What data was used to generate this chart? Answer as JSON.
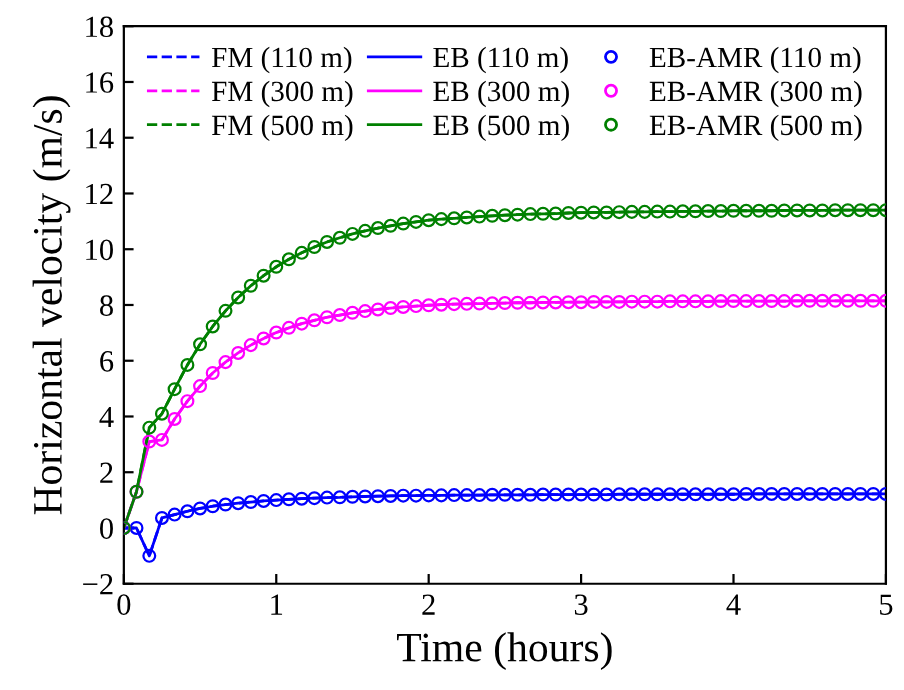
{
  "chart_data": {
    "type": "line",
    "xlabel": "Time (hours)",
    "ylabel": "Horizontal velocity (m/s)",
    "x": [
      0,
      0.083,
      0.167,
      0.25,
      0.333,
      0.417,
      0.5,
      0.583,
      0.667,
      0.75,
      0.833,
      0.917,
      1,
      1.083,
      1.167,
      1.25,
      1.333,
      1.417,
      1.5,
      1.583,
      1.667,
      1.75,
      1.833,
      1.917,
      2,
      2.083,
      2.167,
      2.25,
      2.333,
      2.417,
      2.5,
      2.583,
      2.667,
      2.75,
      2.833,
      2.917,
      3,
      3.083,
      3.167,
      3.25,
      3.333,
      3.417,
      3.5,
      3.583,
      3.667,
      3.75,
      3.833,
      3.917,
      4,
      4.083,
      4.167,
      4.25,
      4.333,
      4.417,
      4.5,
      4.583,
      4.667,
      4.75,
      4.833,
      4.917,
      5
    ],
    "xlim": [
      0,
      5
    ],
    "xticks": [
      0,
      1,
      2,
      3,
      4,
      5
    ],
    "ylim": [
      -2,
      18
    ],
    "yticks": [
      {
        "value": -2,
        "label": "−2"
      },
      0,
      2,
      4,
      6,
      8,
      10,
      12,
      14,
      16,
      18
    ],
    "grid": false,
    "legend": "top",
    "series": [
      {
        "name": "FM (110 m)",
        "line_style": "dashed",
        "marker": "none",
        "color": "#0000ff",
        "values": [
          0,
          0,
          -1.0,
          0.36,
          0.48,
          0.6,
          0.7,
          0.78,
          0.84,
          0.89,
          0.93,
          0.97,
          1.0,
          1.03,
          1.05,
          1.07,
          1.09,
          1.1,
          1.12,
          1.13,
          1.14,
          1.15,
          1.16,
          1.16,
          1.17,
          1.17,
          1.18,
          1.18,
          1.18,
          1.19,
          1.19,
          1.19,
          1.19,
          1.2,
          1.2,
          1.2,
          1.2,
          1.2,
          1.2,
          1.21,
          1.21,
          1.21,
          1.21,
          1.21,
          1.21,
          1.21,
          1.21,
          1.21,
          1.21,
          1.22,
          1.22,
          1.22,
          1.22,
          1.22,
          1.22,
          1.22,
          1.22,
          1.22,
          1.22,
          1.22,
          1.22
        ]
      },
      {
        "name": "FM (300 m)",
        "line_style": "dashed",
        "marker": "none",
        "color": "#ff00ff",
        "values": [
          0,
          1.3,
          3.1,
          3.16,
          3.91,
          4.55,
          5.09,
          5.56,
          5.95,
          6.28,
          6.56,
          6.8,
          7.01,
          7.18,
          7.33,
          7.45,
          7.56,
          7.64,
          7.72,
          7.78,
          7.84,
          7.89,
          7.93,
          7.96,
          7.99,
          8.01,
          8.03,
          8.04,
          8.05,
          8.06,
          8.07,
          8.08,
          8.08,
          8.09,
          8.09,
          8.1,
          8.1,
          8.11,
          8.11,
          8.11,
          8.12,
          8.12,
          8.12,
          8.13,
          8.13,
          8.13,
          8.13,
          8.14,
          8.14,
          8.14,
          8.14,
          8.14,
          8.14,
          8.15,
          8.15,
          8.15,
          8.15,
          8.15,
          8.15,
          8.15,
          8.15
        ]
      },
      {
        "name": "FM (500 m)",
        "line_style": "dashed",
        "marker": "none",
        "color": "#008000",
        "values": [
          0,
          1.3,
          3.6,
          4.1,
          4.98,
          5.85,
          6.59,
          7.23,
          7.79,
          8.27,
          8.69,
          9.05,
          9.37,
          9.64,
          9.87,
          10.08,
          10.26,
          10.41,
          10.55,
          10.66,
          10.76,
          10.84,
          10.92,
          10.98,
          11.04,
          11.08,
          11.11,
          11.14,
          11.17,
          11.2,
          11.22,
          11.24,
          11.26,
          11.27,
          11.28,
          11.3,
          11.31,
          11.32,
          11.32,
          11.33,
          11.34,
          11.34,
          11.35,
          11.35,
          11.36,
          11.36,
          11.37,
          11.37,
          11.38,
          11.38,
          11.38,
          11.38,
          11.39,
          11.39,
          11.39,
          11.39,
          11.4,
          11.4,
          11.4,
          11.4,
          11.4
        ]
      },
      {
        "name": "EB (110 m)",
        "line_style": "solid",
        "marker": "none",
        "color": "#0000ff",
        "values": [
          0,
          0,
          -1.0,
          0.36,
          0.48,
          0.6,
          0.7,
          0.78,
          0.84,
          0.89,
          0.93,
          0.97,
          1.0,
          1.03,
          1.05,
          1.07,
          1.09,
          1.1,
          1.12,
          1.13,
          1.14,
          1.15,
          1.16,
          1.16,
          1.17,
          1.17,
          1.18,
          1.18,
          1.18,
          1.19,
          1.19,
          1.19,
          1.19,
          1.2,
          1.2,
          1.2,
          1.2,
          1.2,
          1.2,
          1.21,
          1.21,
          1.21,
          1.21,
          1.21,
          1.21,
          1.21,
          1.21,
          1.21,
          1.21,
          1.22,
          1.22,
          1.22,
          1.22,
          1.22,
          1.22,
          1.22,
          1.22,
          1.22,
          1.22,
          1.22,
          1.22
        ]
      },
      {
        "name": "EB (300 m)",
        "line_style": "solid",
        "marker": "none",
        "color": "#ff00ff",
        "values": [
          0,
          1.3,
          3.1,
          3.16,
          3.91,
          4.55,
          5.09,
          5.56,
          5.95,
          6.28,
          6.56,
          6.8,
          7.01,
          7.18,
          7.33,
          7.45,
          7.56,
          7.64,
          7.72,
          7.78,
          7.84,
          7.89,
          7.93,
          7.96,
          7.99,
          8.01,
          8.03,
          8.04,
          8.05,
          8.06,
          8.07,
          8.08,
          8.08,
          8.09,
          8.09,
          8.1,
          8.1,
          8.11,
          8.11,
          8.11,
          8.12,
          8.12,
          8.12,
          8.13,
          8.13,
          8.13,
          8.13,
          8.14,
          8.14,
          8.14,
          8.14,
          8.14,
          8.14,
          8.15,
          8.15,
          8.15,
          8.15,
          8.15,
          8.15,
          8.15,
          8.15
        ]
      },
      {
        "name": "EB (500 m)",
        "line_style": "solid",
        "marker": "none",
        "color": "#008000",
        "values": [
          0,
          1.3,
          3.6,
          4.1,
          4.98,
          5.85,
          6.59,
          7.23,
          7.79,
          8.27,
          8.69,
          9.05,
          9.37,
          9.64,
          9.87,
          10.08,
          10.26,
          10.41,
          10.55,
          10.66,
          10.76,
          10.84,
          10.92,
          10.98,
          11.04,
          11.08,
          11.11,
          11.14,
          11.17,
          11.2,
          11.22,
          11.24,
          11.26,
          11.27,
          11.28,
          11.3,
          11.31,
          11.32,
          11.32,
          11.33,
          11.34,
          11.34,
          11.35,
          11.35,
          11.36,
          11.36,
          11.37,
          11.37,
          11.38,
          11.38,
          11.38,
          11.38,
          11.39,
          11.39,
          11.39,
          11.39,
          11.4,
          11.4,
          11.4,
          11.4,
          11.4
        ]
      },
      {
        "name": "EB-AMR (110 m)",
        "type": "scatter",
        "marker": "circle",
        "color": "#0000ff",
        "values": [
          0,
          0,
          -1.0,
          0.36,
          0.48,
          0.6,
          0.7,
          0.78,
          0.84,
          0.89,
          0.93,
          0.97,
          1.0,
          1.03,
          1.05,
          1.07,
          1.09,
          1.1,
          1.12,
          1.13,
          1.14,
          1.15,
          1.16,
          1.16,
          1.17,
          1.17,
          1.18,
          1.18,
          1.18,
          1.19,
          1.19,
          1.19,
          1.19,
          1.2,
          1.2,
          1.2,
          1.2,
          1.2,
          1.2,
          1.21,
          1.21,
          1.21,
          1.21,
          1.21,
          1.21,
          1.21,
          1.21,
          1.21,
          1.21,
          1.22,
          1.22,
          1.22,
          1.22,
          1.22,
          1.22,
          1.22,
          1.22,
          1.22,
          1.22,
          1.22,
          1.22
        ]
      },
      {
        "name": "EB-AMR (300 m)",
        "type": "scatter",
        "marker": "circle",
        "color": "#ff00ff",
        "values": [
          0,
          1.3,
          3.1,
          3.16,
          3.91,
          4.55,
          5.09,
          5.56,
          5.95,
          6.28,
          6.56,
          6.8,
          7.01,
          7.18,
          7.33,
          7.45,
          7.56,
          7.64,
          7.72,
          7.78,
          7.84,
          7.89,
          7.93,
          7.96,
          7.99,
          8.01,
          8.03,
          8.04,
          8.05,
          8.06,
          8.07,
          8.08,
          8.08,
          8.09,
          8.09,
          8.1,
          8.1,
          8.11,
          8.11,
          8.11,
          8.12,
          8.12,
          8.12,
          8.13,
          8.13,
          8.13,
          8.13,
          8.14,
          8.14,
          8.14,
          8.14,
          8.14,
          8.14,
          8.15,
          8.15,
          8.15,
          8.15,
          8.15,
          8.15,
          8.15,
          8.15
        ]
      },
      {
        "name": "EB-AMR (500 m)",
        "type": "scatter",
        "marker": "circle",
        "color": "#008000",
        "values": [
          0,
          1.3,
          3.6,
          4.1,
          4.98,
          5.85,
          6.59,
          7.23,
          7.79,
          8.27,
          8.69,
          9.05,
          9.37,
          9.64,
          9.87,
          10.08,
          10.26,
          10.41,
          10.55,
          10.66,
          10.76,
          10.84,
          10.92,
          10.98,
          11.04,
          11.08,
          11.11,
          11.14,
          11.17,
          11.2,
          11.22,
          11.24,
          11.26,
          11.27,
          11.28,
          11.3,
          11.31,
          11.32,
          11.32,
          11.33,
          11.34,
          11.34,
          11.35,
          11.35,
          11.36,
          11.36,
          11.37,
          11.37,
          11.38,
          11.38,
          11.38,
          11.38,
          11.39,
          11.39,
          11.39,
          11.39,
          11.4,
          11.4,
          11.4,
          11.4,
          11.4
        ]
      }
    ]
  }
}
